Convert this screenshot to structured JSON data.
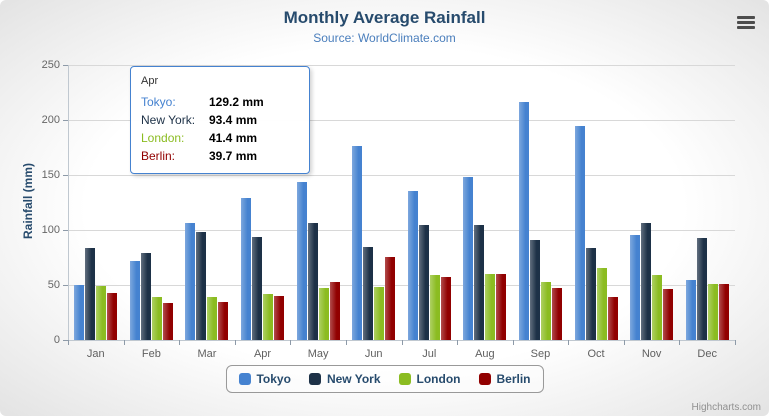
{
  "title": "Monthly Average Rainfall",
  "subtitle": "Source: WorldClimate.com",
  "watermark": "Highcharts.com",
  "yAxis": {
    "title": "Rainfall (mm)",
    "ticks": [
      0,
      50,
      100,
      150,
      200,
      250
    ]
  },
  "tooltip": {
    "header": "Apr",
    "rows": [
      {
        "name": "Tokyo:",
        "value": "129.2 mm",
        "color": "#4582d0"
      },
      {
        "name": "New York:",
        "value": "93.4 mm",
        "color": "#1d3147"
      },
      {
        "name": "London:",
        "value": "41.4 mm",
        "color": "#8bbc21"
      },
      {
        "name": "Berlin:",
        "value": "39.7 mm",
        "color": "#910000"
      }
    ]
  },
  "chart_data": {
    "type": "bar",
    "title": "Monthly Average Rainfall",
    "subtitle": "Source: WorldClimate.com",
    "xlabel": "",
    "ylabel": "Rainfall (mm)",
    "ylim": [
      0,
      250
    ],
    "grid": true,
    "legend_position": "bottom",
    "categories": [
      "Jan",
      "Feb",
      "Mar",
      "Apr",
      "May",
      "Jun",
      "Jul",
      "Aug",
      "Sep",
      "Oct",
      "Nov",
      "Dec"
    ],
    "series": [
      {
        "name": "Tokyo",
        "color": "#4582d0",
        "values": [
          49.9,
          71.5,
          106.4,
          129.2,
          144.0,
          176.0,
          135.6,
          148.5,
          216.4,
          194.1,
          95.6,
          54.4
        ]
      },
      {
        "name": "New York",
        "color": "#1d3147",
        "values": [
          83.6,
          78.8,
          98.5,
          93.4,
          106.0,
          84.5,
          105.0,
          104.3,
          91.2,
          83.5,
          106.6,
          92.3
        ]
      },
      {
        "name": "London",
        "color": "#8bbc21",
        "values": [
          48.9,
          38.8,
          39.3,
          41.4,
          47.0,
          48.3,
          59.0,
          59.6,
          52.4,
          65.2,
          59.3,
          51.2
        ]
      },
      {
        "name": "Berlin",
        "color": "#910000",
        "values": [
          42.4,
          33.2,
          34.5,
          39.7,
          52.6,
          75.5,
          57.4,
          60.4,
          47.6,
          39.1,
          46.8,
          51.1
        ]
      }
    ]
  }
}
